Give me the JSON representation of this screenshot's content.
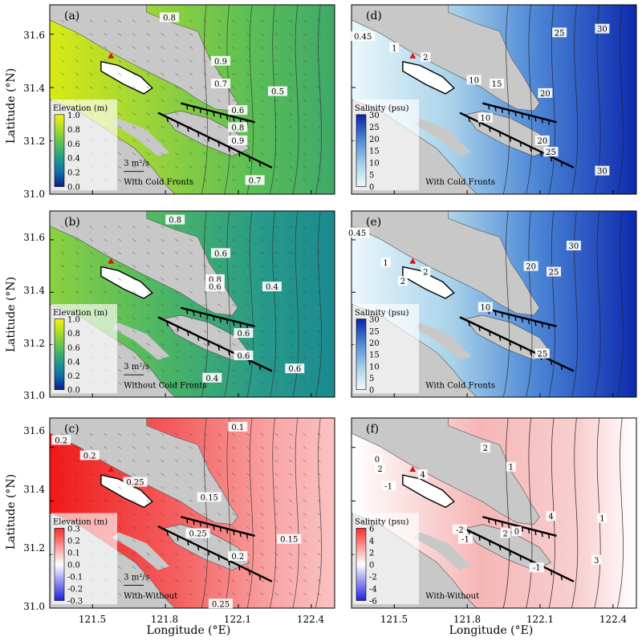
{
  "figure": {
    "y_axis_label": "Latitude (°N)",
    "x_axis_label": "Longitude (°E)",
    "lat_ticks": [
      "31.0",
      "31.2",
      "31.4",
      "31.6"
    ],
    "lon_ticks": [
      "121.5",
      "121.8",
      "122.1",
      "122.4"
    ]
  },
  "panels": [
    {
      "id": "a",
      "tag": "(a)",
      "variable": "elevation",
      "cbar_title": "Elevation (m)",
      "cbar_ticks": [
        "1.0",
        "0.8",
        "0.6",
        "0.4",
        "0.2",
        "0.0"
      ],
      "scale_label": "3 m²/s",
      "note": "With Cold Fronts",
      "contour_labels": [
        "0.8",
        "0.9",
        "0.7",
        "0.6",
        "0.5",
        "0.8",
        "0.9",
        "0.7"
      ],
      "colors": [
        "#0a1f8f",
        "#0f6fa8",
        "#1f9e8a",
        "#58c255",
        "#a8dc2a",
        "#f2f20a"
      ]
    },
    {
      "id": "d",
      "tag": "(d)",
      "variable": "salinity",
      "cbar_title": "Salinity (psu)",
      "cbar_ticks": [
        "30",
        "25",
        "20",
        "15",
        "10",
        "5",
        "0"
      ],
      "note": "With Cold Fronts",
      "contour_labels": [
        "0.45",
        "1",
        "2",
        "10",
        "15",
        "20",
        "25",
        "30",
        "10",
        "20",
        "25",
        "30"
      ],
      "colors": [
        "#e8f7fb",
        "#9fcbe7",
        "#5a96d8",
        "#2454c8",
        "#0a25a8"
      ]
    },
    {
      "id": "b",
      "tag": "(b)",
      "variable": "elevation",
      "cbar_title": "Elevation (m)",
      "cbar_ticks": [
        "1.0",
        "0.8",
        "0.6",
        "0.4",
        "0.2",
        "0.0"
      ],
      "scale_label": "3 m²/s",
      "note": "Without Cold Fronts",
      "contour_labels": [
        "0.8",
        "0.6",
        "0.8",
        "0.6",
        "0.4",
        "0.6",
        "0.6",
        "0.4",
        "0.6"
      ],
      "colors": [
        "#0a1f8f",
        "#0f6fa8",
        "#1f9e8a",
        "#58c255",
        "#a8dc2a",
        "#f2f20a"
      ]
    },
    {
      "id": "e",
      "tag": "(e)",
      "variable": "salinity",
      "cbar_title": "Salinity (psu)",
      "cbar_ticks": [
        "30",
        "25",
        "20",
        "15",
        "10",
        "5",
        "0"
      ],
      "note": "With Cold Fronts",
      "contour_labels": [
        "0.45",
        "1",
        "2",
        "2",
        "10",
        "20",
        "25",
        "30",
        "25"
      ],
      "colors": [
        "#e8f7fb",
        "#9fcbe7",
        "#5a96d8",
        "#2454c8",
        "#0a25a8"
      ]
    },
    {
      "id": "c",
      "tag": "(c)",
      "variable": "elevation-diff",
      "cbar_title": "Elevation (m)",
      "cbar_ticks": [
        "0.3",
        "0.2",
        "0.1",
        "0.0",
        "-0.1",
        "-0.2",
        "-0.3"
      ],
      "scale_label": "3 m²/s",
      "note": "With-Without",
      "contour_labels": [
        "0.1",
        "0.2",
        "0.2",
        "0.25",
        "0.15",
        "0.25",
        "0.2",
        "0.15",
        "0.25"
      ],
      "colors": [
        "#1f1fe0",
        "#ffffff",
        "#ff2a2a"
      ]
    },
    {
      "id": "f",
      "tag": "(f)",
      "variable": "salinity-diff",
      "cbar_title": "Salinity (psu)",
      "cbar_ticks": [
        "6",
        "4",
        "2",
        "0",
        "-2",
        "-4",
        "-6"
      ],
      "note": "With-Without",
      "contour_labels": [
        "2",
        "0",
        "2",
        "4",
        "-1",
        "1",
        "4",
        "1",
        "3",
        "-2",
        "-1",
        "2",
        "-1",
        "0"
      ],
      "colors": [
        "#1f1fe0",
        "#ffffff",
        "#ff2a2a"
      ]
    }
  ]
}
